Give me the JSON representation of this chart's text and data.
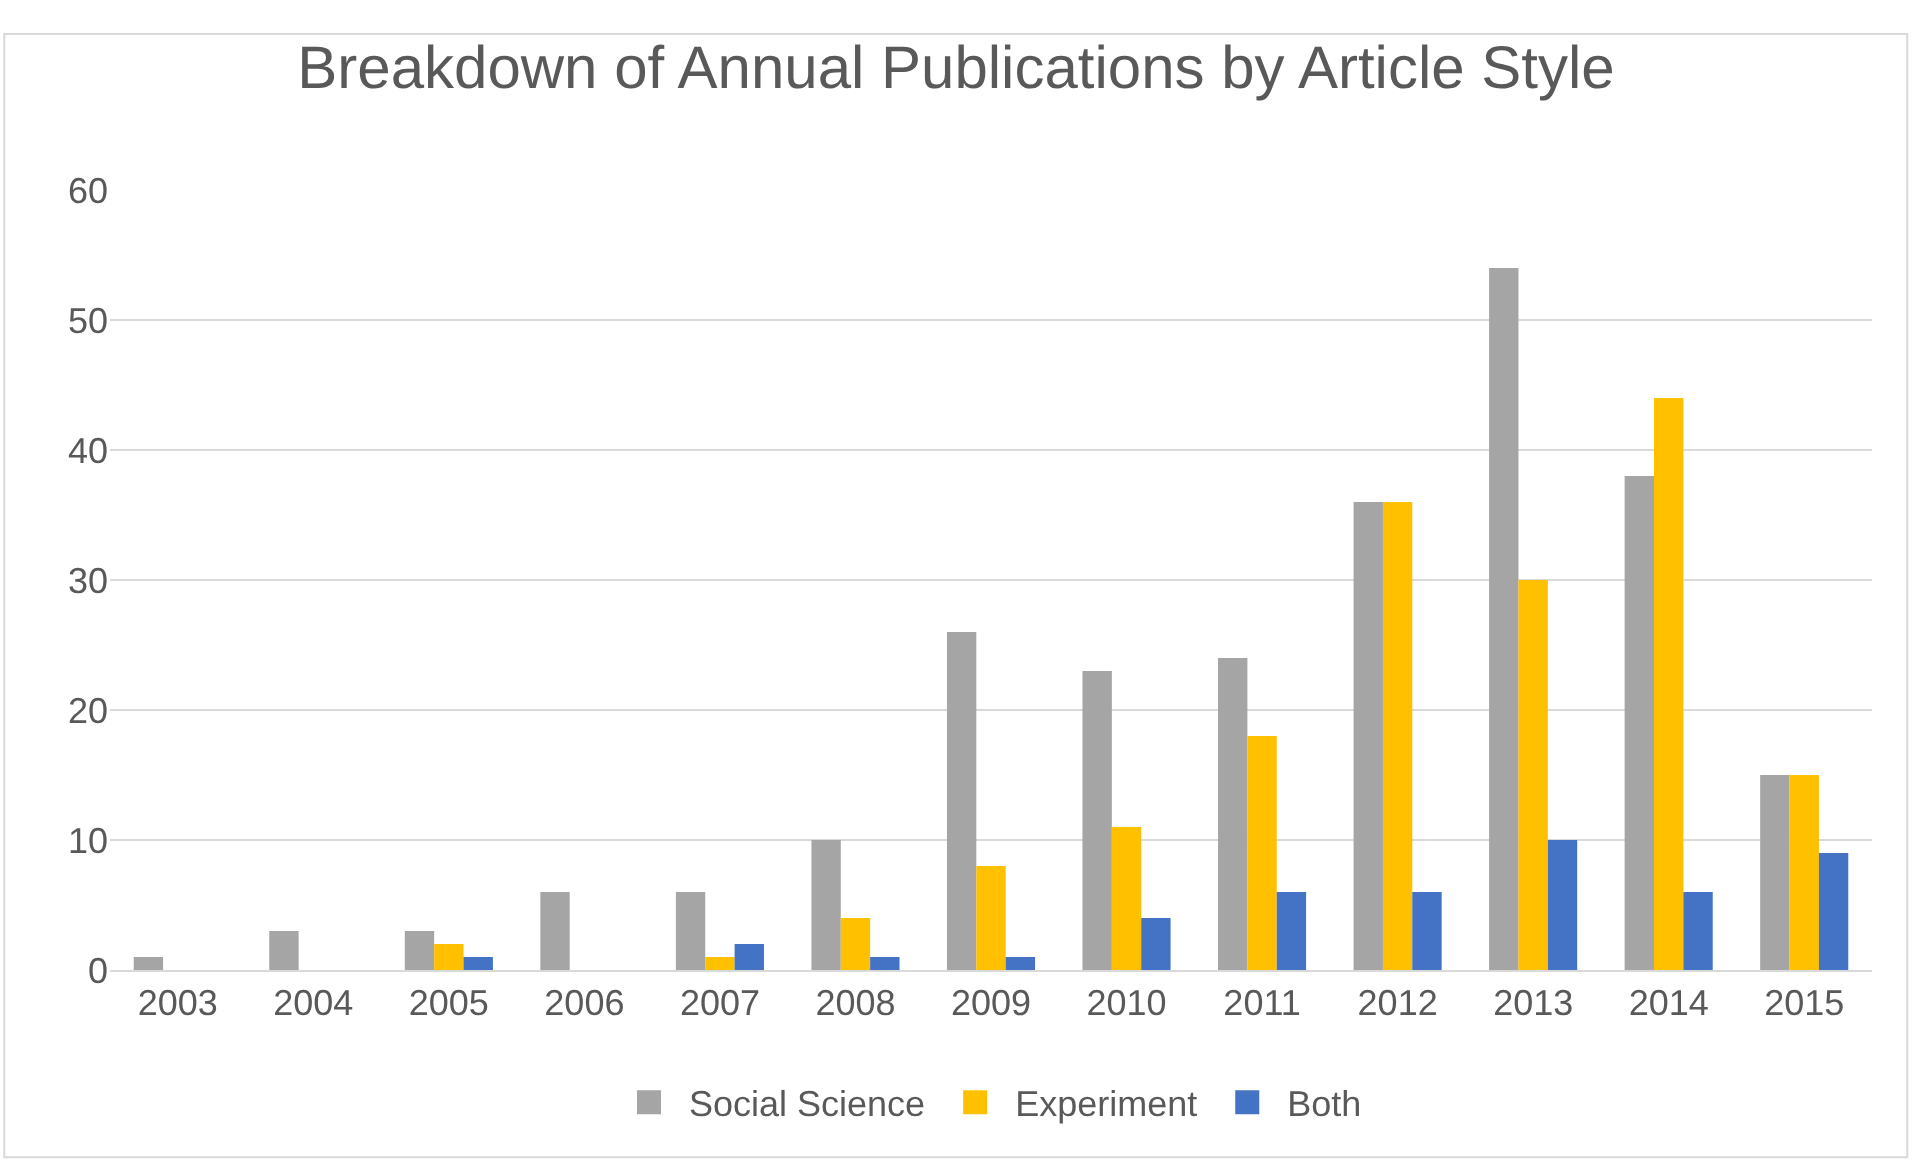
{
  "chart_data": {
    "type": "bar",
    "title": "Breakdown of Annual Publications by Article Style",
    "categories": [
      "2003",
      "2004",
      "2005",
      "2006",
      "2007",
      "2008",
      "2009",
      "2010",
      "2011",
      "2012",
      "2013",
      "2014",
      "2015"
    ],
    "series": [
      {
        "name": "Social Science",
        "color": "#a5a5a5",
        "values": [
          1,
          3,
          3,
          6,
          6,
          10,
          26,
          23,
          24,
          36,
          54,
          38,
          15
        ]
      },
      {
        "name": "Experiment",
        "color": "#ffc000",
        "values": [
          0,
          0,
          2,
          0,
          1,
          4,
          8,
          11,
          18,
          36,
          30,
          44,
          15
        ]
      },
      {
        "name": "Both",
        "color": "#4472c4",
        "values": [
          0,
          0,
          1,
          0,
          2,
          1,
          1,
          4,
          6,
          6,
          10,
          6,
          9
        ]
      }
    ],
    "ylim": [
      0,
      60
    ],
    "yticks": [
      0,
      10,
      20,
      30,
      40,
      50,
      60
    ],
    "grid": "y",
    "legend": "bottom"
  }
}
